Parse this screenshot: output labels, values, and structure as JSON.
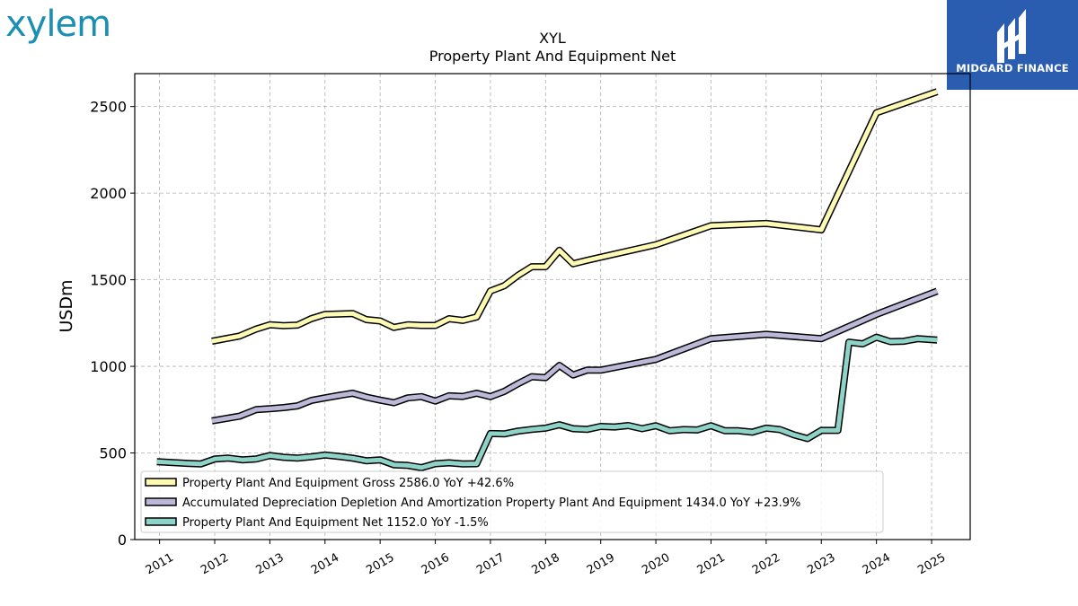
{
  "branding": {
    "left_logo": "xylem",
    "right_logo": "MIDGARD FINANCE",
    "right_logo_bg": "#2a5db0"
  },
  "chart_data": {
    "type": "line",
    "title": "XYL",
    "subtitle": "Property Plant And Equipment Net",
    "xlabel": "",
    "ylabel": "USDm",
    "xlim": [
      2010.55,
      2025.7
    ],
    "ylim": [
      0,
      2690
    ],
    "yticks": [
      0,
      500,
      1000,
      1500,
      2000,
      2500
    ],
    "xticks": [
      "2011",
      "2012",
      "2013",
      "2014",
      "2015",
      "2016",
      "2017",
      "2018",
      "2019",
      "2020",
      "2021",
      "2022",
      "2023",
      "2024",
      "2025"
    ],
    "grid": true,
    "legend_position": "lower-left",
    "series": [
      {
        "name": "Property Plant And Equipment Gross",
        "legend_label": "Property Plant And Equipment Gross  2586.0 YoY +42.6%",
        "color": "#fdfbb3",
        "points": [
          [
            2011.95,
            1145
          ],
          [
            2012.45,
            1175
          ],
          [
            2012.75,
            1215
          ],
          [
            2013.0,
            1240
          ],
          [
            2013.25,
            1235
          ],
          [
            2013.5,
            1238
          ],
          [
            2013.75,
            1275
          ],
          [
            2014.0,
            1300
          ],
          [
            2014.25,
            1302
          ],
          [
            2014.5,
            1305
          ],
          [
            2014.75,
            1270
          ],
          [
            2015.0,
            1262
          ],
          [
            2015.25,
            1225
          ],
          [
            2015.5,
            1240
          ],
          [
            2015.75,
            1236
          ],
          [
            2016.0,
            1236
          ],
          [
            2016.25,
            1275
          ],
          [
            2016.5,
            1265
          ],
          [
            2016.75,
            1285
          ],
          [
            2017.0,
            1435
          ],
          [
            2017.25,
            1465
          ],
          [
            2017.5,
            1525
          ],
          [
            2017.75,
            1575
          ],
          [
            2018.0,
            1575
          ],
          [
            2018.25,
            1670
          ],
          [
            2018.5,
            1592
          ],
          [
            2018.75,
            1612
          ],
          [
            2019.0,
            1630
          ],
          [
            2020.0,
            1702
          ],
          [
            2021.0,
            1812
          ],
          [
            2022.0,
            1825
          ],
          [
            2023.0,
            1788
          ],
          [
            2024.0,
            2464
          ],
          [
            2025.1,
            2586
          ]
        ]
      },
      {
        "name": "Accumulated Depreciation Depletion And Amortization Property Plant And Equipment",
        "legend_label": "Accumulated Depreciation Depletion And Amortization Property Plant And Equipment  1434.0 YoY +23.9%",
        "color": "#bcb9d8",
        "points": [
          [
            2011.95,
            685
          ],
          [
            2012.45,
            712
          ],
          [
            2012.75,
            750
          ],
          [
            2013.0,
            755
          ],
          [
            2013.25,
            762
          ],
          [
            2013.5,
            772
          ],
          [
            2013.75,
            803
          ],
          [
            2014.0,
            818
          ],
          [
            2014.25,
            832
          ],
          [
            2014.5,
            845
          ],
          [
            2014.75,
            822
          ],
          [
            2015.0,
            805
          ],
          [
            2015.25,
            790
          ],
          [
            2015.5,
            818
          ],
          [
            2015.75,
            825
          ],
          [
            2016.0,
            800
          ],
          [
            2016.25,
            830
          ],
          [
            2016.5,
            826
          ],
          [
            2016.75,
            845
          ],
          [
            2017.0,
            825
          ],
          [
            2017.25,
            855
          ],
          [
            2017.5,
            900
          ],
          [
            2017.75,
            940
          ],
          [
            2018.0,
            935
          ],
          [
            2018.25,
            1005
          ],
          [
            2018.5,
            950
          ],
          [
            2018.75,
            978
          ],
          [
            2019.0,
            978
          ],
          [
            2020.0,
            1040
          ],
          [
            2021.0,
            1160
          ],
          [
            2022.0,
            1185
          ],
          [
            2023.0,
            1160
          ],
          [
            2024.0,
            1300
          ],
          [
            2025.1,
            1434
          ]
        ]
      },
      {
        "name": "Property Plant And Equipment Net",
        "legend_label": "Property Plant And Equipment Net  1152.0 YoY -1.5%",
        "color": "#8dd3c7",
        "points": [
          [
            2010.95,
            450
          ],
          [
            2011.5,
            440
          ],
          [
            2011.75,
            437
          ],
          [
            2012.0,
            465
          ],
          [
            2012.25,
            470
          ],
          [
            2012.5,
            460
          ],
          [
            2012.75,
            465
          ],
          [
            2013.0,
            485
          ],
          [
            2013.25,
            475
          ],
          [
            2013.5,
            470
          ],
          [
            2013.75,
            478
          ],
          [
            2014.0,
            488
          ],
          [
            2014.25,
            480
          ],
          [
            2014.5,
            470
          ],
          [
            2014.75,
            455
          ],
          [
            2015.0,
            460
          ],
          [
            2015.25,
            432
          ],
          [
            2015.5,
            428
          ],
          [
            2015.75,
            415
          ],
          [
            2016.0,
            438
          ],
          [
            2016.25,
            443
          ],
          [
            2016.5,
            437
          ],
          [
            2016.75,
            438
          ],
          [
            2017.0,
            612
          ],
          [
            2017.25,
            610
          ],
          [
            2017.5,
            626
          ],
          [
            2017.75,
            636
          ],
          [
            2018.0,
            643
          ],
          [
            2018.25,
            663
          ],
          [
            2018.5,
            640
          ],
          [
            2018.75,
            636
          ],
          [
            2019.0,
            653
          ],
          [
            2019.25,
            650
          ],
          [
            2019.5,
            658
          ],
          [
            2019.75,
            640
          ],
          [
            2020.0,
            657
          ],
          [
            2020.25,
            628
          ],
          [
            2020.5,
            635
          ],
          [
            2020.75,
            633
          ],
          [
            2021.0,
            657
          ],
          [
            2021.25,
            628
          ],
          [
            2021.5,
            628
          ],
          [
            2021.75,
            620
          ],
          [
            2022.0,
            643
          ],
          [
            2022.25,
            635
          ],
          [
            2022.5,
            605
          ],
          [
            2022.75,
            583
          ],
          [
            2023.0,
            630
          ],
          [
            2023.3,
            630
          ],
          [
            2023.5,
            1140
          ],
          [
            2023.75,
            1130
          ],
          [
            2024.0,
            1168
          ],
          [
            2024.25,
            1143
          ],
          [
            2024.5,
            1145
          ],
          [
            2024.75,
            1160
          ],
          [
            2025.1,
            1152
          ]
        ]
      }
    ]
  }
}
